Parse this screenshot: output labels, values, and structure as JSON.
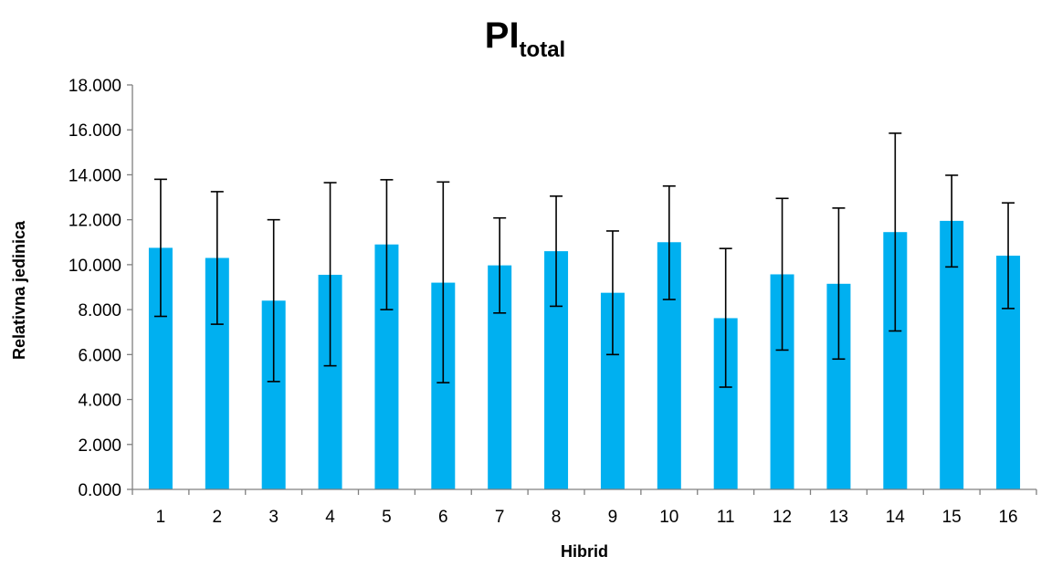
{
  "chart_data": {
    "type": "bar",
    "title": "PI",
    "title_subscript": "total",
    "xlabel": "Hibrid",
    "ylabel": "Relativna jedinica",
    "categories": [
      "1",
      "2",
      "3",
      "4",
      "5",
      "6",
      "7",
      "8",
      "9",
      "10",
      "11",
      "12",
      "13",
      "14",
      "15",
      "16"
    ],
    "series": [
      {
        "values": [
          10.75,
          10.3,
          8.4,
          9.55,
          10.9,
          9.2,
          9.97,
          10.6,
          8.75,
          11.0,
          7.62,
          9.57,
          9.15,
          11.45,
          11.95,
          10.4
        ],
        "error_low": [
          7.7,
          7.35,
          4.8,
          5.5,
          8.0,
          4.75,
          7.85,
          8.15,
          6.0,
          8.45,
          4.55,
          6.2,
          5.8,
          7.05,
          9.9,
          8.05
        ],
        "error_high": [
          13.8,
          13.25,
          12.0,
          13.65,
          13.78,
          13.68,
          12.08,
          13.05,
          11.5,
          13.5,
          10.72,
          12.95,
          12.52,
          15.85,
          13.98,
          12.75
        ],
        "color": "#00B0F0"
      }
    ],
    "ylim": [
      0,
      18
    ],
    "yticks": [
      0,
      2,
      4,
      6,
      8,
      10,
      12,
      14,
      16,
      18
    ],
    "ytick_labels": [
      "0.000",
      "2.000",
      "4.000",
      "6.000",
      "8.000",
      "10.000",
      "12.000",
      "14.000",
      "16.000",
      "18.000"
    ],
    "grid": false,
    "legend": "none",
    "colors": {
      "bar": "#00B0F0",
      "axis": "#808080",
      "error_bar": "#000000"
    }
  }
}
